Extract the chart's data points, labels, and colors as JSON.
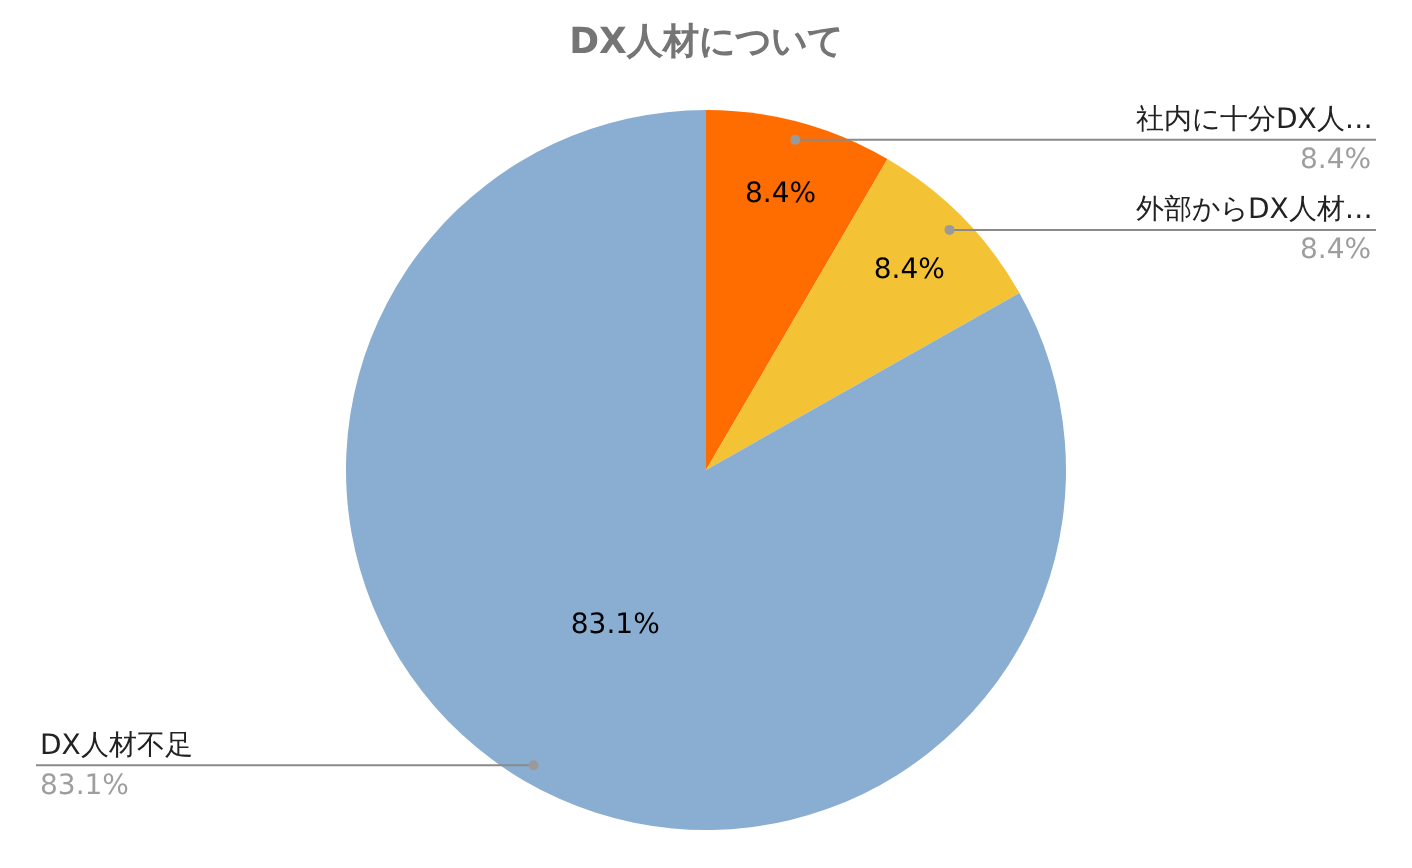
{
  "chart_data": {
    "type": "pie",
    "title": "DX人材について",
    "categories": [
      "社内に十分DX人…",
      "外部からDX人材…",
      "DX人材不足"
    ],
    "values": [
      8.4,
      8.4,
      83.1
    ],
    "value_labels": [
      "8.4%",
      "8.4%",
      "83.1%"
    ],
    "colors": [
      "#ff6d01",
      "#f4c235",
      "#8aaed1"
    ],
    "legend": false
  }
}
